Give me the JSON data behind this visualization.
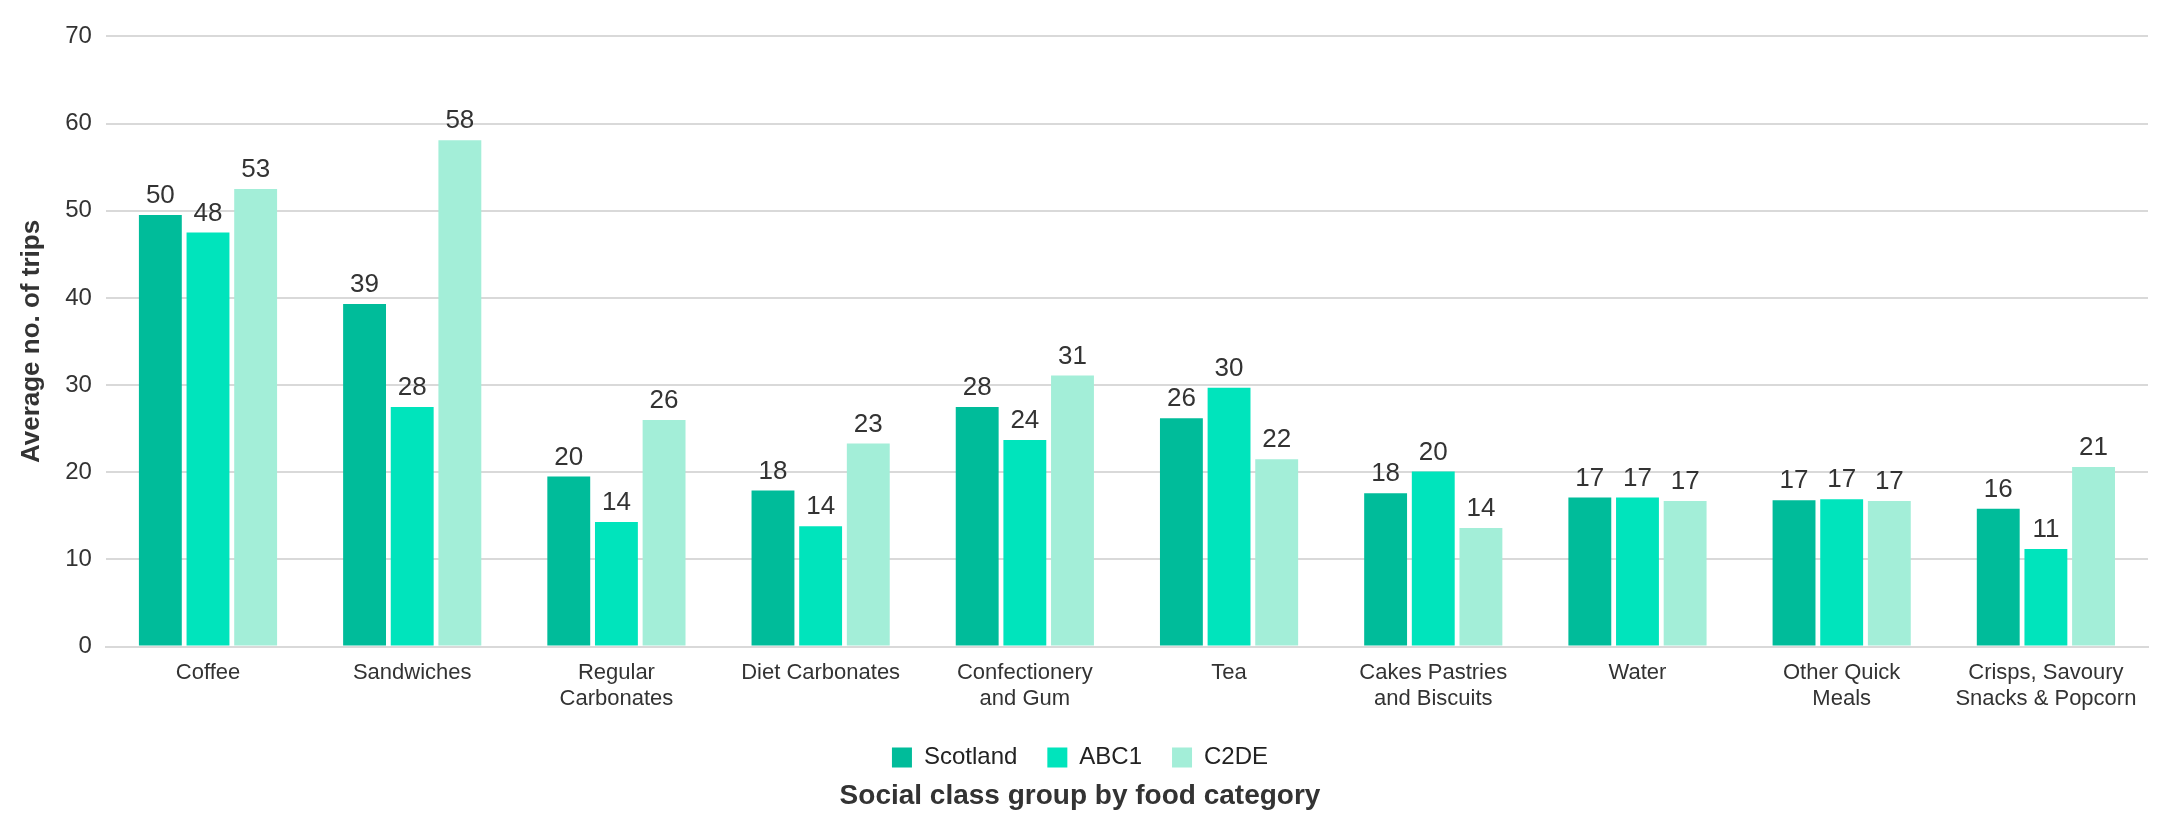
{
  "chart_data": {
    "type": "bar",
    "xlabel": "Social class group by food category",
    "ylabel": "Average no. of trips",
    "categories": [
      "Coffee",
      "Sandwiches",
      "Regular Carbonates",
      "Diet Carbonates",
      "Confectionery and Gum",
      "Tea",
      "Cakes Pastries and Biscuits",
      "Water",
      "Other Quick Meals",
      "Crisps, Savoury Snacks & Popcorn"
    ],
    "series": [
      {
        "name": "Scotland",
        "color": "#00bc9a",
        "values": [
          49.5,
          39.3,
          19.5,
          17.9,
          27.5,
          26.2,
          17.6,
          17.1,
          16.8,
          15.8
        ],
        "value_labels": [
          "50",
          "39",
          "20",
          "18",
          "28",
          "26",
          "18",
          "17",
          "17",
          "16"
        ]
      },
      {
        "name": "ABC1",
        "color": "#00e4bc",
        "values": [
          47.5,
          27.5,
          14.3,
          13.8,
          23.7,
          29.7,
          20.1,
          17.1,
          16.9,
          11.2
        ],
        "value_labels": [
          "48",
          "28",
          "14",
          "14",
          "24",
          "30",
          "20",
          "17",
          "17",
          "11"
        ]
      },
      {
        "name": "C2DE",
        "color": "#a3eed8",
        "values": [
          52.5,
          58.1,
          26.0,
          23.3,
          31.1,
          21.5,
          13.6,
          16.7,
          16.7,
          20.6
        ],
        "value_labels": [
          "53",
          "58",
          "26",
          "23",
          "31",
          "22",
          "14",
          "17",
          "17",
          "21"
        ]
      }
    ],
    "ylim": [
      0,
      70
    ],
    "yticks": [
      0,
      10,
      20,
      30,
      40,
      50,
      60,
      70
    ],
    "grid": "y",
    "legend": "bottom"
  }
}
